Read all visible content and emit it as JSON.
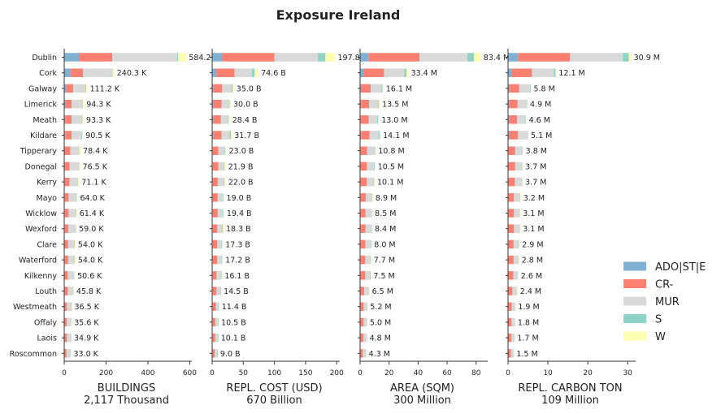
{
  "chart_data": {
    "type": "bar",
    "orientation": "horizontal",
    "stacked": true,
    "title": "Exposure Ireland",
    "legend_position": "right",
    "grid": false,
    "categories": [
      "Dublin",
      "Cork",
      "Galway",
      "Limerick",
      "Meath",
      "Kildare",
      "Tipperary",
      "Donegal",
      "Kerry",
      "Mayo",
      "Wicklow",
      "Wexford",
      "Clare",
      "Waterford",
      "Kilkenny",
      "Louth",
      "Westmeath",
      "Offaly",
      "Laois",
      "Roscommon"
    ],
    "series_colors": {
      "ADO|ST|E": "#80b1d3",
      "CR-": "#fb8072",
      "MUR": "#d9d9d9",
      "S": "#8dd3c7",
      "W": "#ffffb3"
    },
    "legend": [
      "ADO|ST|E",
      "CR-",
      "MUR",
      "S",
      "W"
    ],
    "panels": [
      {
        "xlabel": "BUILDINGS",
        "xlabel_total": "2,117 Thousand",
        "xlim": [
          0,
          610
        ],
        "xticks": [
          0,
          200,
          400,
          600
        ],
        "labels": [
          "584.2 K",
          "240.3 K",
          "111.2 K",
          "94.3 K",
          "93.3 K",
          "90.5 K",
          "78.4 K",
          "76.5 K",
          "71.1 K",
          "64.0 K",
          "61.4 K",
          "59.0 K",
          "54.0 K",
          "54.0 K",
          "50.6 K",
          "45.8 K",
          "36.5 K",
          "35.6 K",
          "34.9 K",
          "33.0 K"
        ],
        "series": [
          {
            "name": "ADO|ST|E",
            "values": [
              70,
              30,
              8,
              6,
              5,
              5,
              4,
              4,
              3,
              3,
              3,
              3,
              2,
              3,
              2,
              2,
              2,
              2,
              2,
              1
            ]
          },
          {
            "name": "CR-",
            "values": [
              160,
              60,
              35,
              30,
              30,
              30,
              25,
              22,
              22,
              18,
              18,
              17,
              17,
              16,
              15,
              15,
              11,
              11,
              11,
              10
            ]
          },
          {
            "name": "MUR",
            "values": [
              310,
              140,
              60,
              50,
              50,
              48,
              42,
              44,
              40,
              38,
              35,
              34,
              30,
              30,
              29,
              25,
              20,
              20,
              19,
              19
            ]
          },
          {
            "name": "S",
            "values": [
              4,
              2,
              2,
              3,
              3,
              3,
              2,
              2,
              2,
              2,
              2,
              2,
              2,
              2,
              2,
              2,
              2,
              1,
              2,
              2
            ]
          },
          {
            "name": "W",
            "values": [
              40,
              8,
              6,
              5,
              5,
              4,
              5,
              4,
              4,
              3,
              3,
              3,
              3,
              3,
              3,
              2,
              2,
              2,
              1,
              1
            ]
          }
        ]
      },
      {
        "xlabel": "REPL. COST (USD)",
        "xlabel_total": "670 Billion",
        "xlim": [
          0,
          205
        ],
        "xticks": [
          0,
          50,
          100,
          150,
          200
        ],
        "labels": [
          "197.8 B",
          "74.6 B",
          "35.0 B",
          "30.0 B",
          "28.4 B",
          "31.7 B",
          "23.0 B",
          "21.9 B",
          "22.0 B",
          "19.0 B",
          "19.4 B",
          "18.3 B",
          "17.3 B",
          "17.2 B",
          "16.1 B",
          "14.5 B",
          "11.4 B",
          "10.5 B",
          "10.1 B",
          "9.0 B"
        ],
        "series": [
          {
            "name": "ADO|ST|E",
            "values": [
              17,
              7,
              2,
              2,
              2,
              2,
              1,
              1,
              1,
              1,
              1,
              1,
              1,
              1,
              1,
              1,
              1,
              1,
              1,
              1
            ]
          },
          {
            "name": "CR-",
            "values": [
              83,
              29,
              14,
              13,
              12,
              13,
              9,
              9,
              8,
              8,
              8,
              7,
              7,
              7,
              6,
              6,
              5,
              4,
              4,
              3
            ]
          },
          {
            "name": "MUR",
            "values": [
              70,
              28,
              15,
              12,
              11,
              13,
              10,
              9,
              10,
              8,
              8,
              8,
              7,
              7,
              7,
              6,
              4,
              4,
              4,
              4
            ]
          },
          {
            "name": "S",
            "values": [
              12,
              4,
              2,
              1,
              1,
              2,
              1,
              1,
              1,
              1,
              1,
              1,
              1,
              1,
              1,
              1,
              1,
              1,
              1,
              1
            ]
          },
          {
            "name": "W",
            "values": [
              15.8,
              6.6,
              2,
              2,
              2.4,
              1.7,
              2,
              1.9,
              2,
              1,
              1.4,
              1.3,
              1.3,
              1.2,
              1.1,
              0.5,
              0.4,
              0.5,
              0.1,
              0
            ]
          }
        ]
      },
      {
        "xlabel": "AREA (SQM)",
        "xlabel_total": "300 Million",
        "xlim": [
          0,
          88
        ],
        "xticks": [
          0,
          20,
          40,
          60,
          80
        ],
        "labels": [
          "83.4 M",
          "33.4 M",
          "16.1 M",
          "13.5 M",
          "13.0 M",
          "14.1 M",
          "10.8 M",
          "10.5 M",
          "10.1 M",
          "8.9 M",
          "8.5 M",
          "8.4 M",
          "8.0 M",
          "7.7 M",
          "7.5 M",
          "6.5 M",
          "5.2 M",
          "5.0 M",
          "4.8 M",
          "4.3 M"
        ],
        "series": [
          {
            "name": "ADO|ST|E",
            "values": [
              6,
              2.5,
              0.8,
              0.7,
              0.6,
              0.7,
              0.5,
              0.5,
              0.5,
              0.4,
              0.4,
              0.4,
              0.4,
              0.4,
              0.4,
              0.3,
              0.3,
              0.3,
              0.3,
              0.2
            ]
          },
          {
            "name": "CR-",
            "values": [
              35,
              14,
              6.5,
              5.5,
              5.3,
              5.8,
              4.3,
              4.2,
              4,
              3.5,
              3.4,
              3.3,
              3.2,
              3.1,
              3,
              2.6,
              2.1,
              2,
              1.9,
              1.7
            ]
          },
          {
            "name": "MUR",
            "values": [
              33,
              14,
              7.5,
              6.2,
              6,
              6.5,
              5.2,
              5,
              4.8,
              4.3,
              4.1,
              4.1,
              3.9,
              3.7,
              3.6,
              3.2,
              2.5,
              2.4,
              2.3,
              2.1
            ]
          },
          {
            "name": "S",
            "values": [
              4.5,
              1.5,
              0.7,
              0.6,
              0.6,
              0.7,
              0.4,
              0.4,
              0.4,
              0.3,
              0.3,
              0.3,
              0.3,
              0.3,
              0.3,
              0.2,
              0.2,
              0.2,
              0.2,
              0.2
            ]
          },
          {
            "name": "W",
            "values": [
              4.9,
              1.4,
              0.6,
              0.5,
              0.5,
              0.4,
              0.4,
              0.4,
              0.4,
              0.4,
              0.3,
              0.3,
              0.2,
              0.2,
              0.2,
              0.2,
              0.1,
              0.1,
              0.1,
              0.1
            ]
          }
        ]
      },
      {
        "xlabel": "REPL. CARBON TON",
        "xlabel_total": "109 Million",
        "xlim": [
          0,
          32
        ],
        "xticks": [
          0,
          10,
          20,
          30
        ],
        "labels": [
          "30.9 M",
          "12.1 M",
          "5.8 M",
          "4.9 M",
          "4.6 M",
          "5.1 M",
          "3.8 M",
          "3.7 M",
          "3.7 M",
          "3.2 M",
          "3.1 M",
          "3.1 M",
          "2.9 M",
          "2.8 M",
          "2.6 M",
          "2.4 M",
          "1.9 M",
          "1.8 M",
          "1.7 M",
          "1.5 M"
        ],
        "series": [
          {
            "name": "ADO|ST|E",
            "values": [
              2.5,
              1,
              0.3,
              0.3,
              0.3,
              0.3,
              0.2,
              0.2,
              0.2,
              0.2,
              0.2,
              0.2,
              0.2,
              0.2,
              0.2,
              0.1,
              0.1,
              0.1,
              0.1,
              0.1
            ]
          },
          {
            "name": "CR-",
            "values": [
              13,
              5,
              2.5,
              2.1,
              2,
              2.2,
              1.6,
              1.6,
              1.5,
              1.3,
              1.3,
              1.3,
              1.2,
              1.2,
              1.1,
              1,
              0.8,
              0.7,
              0.7,
              0.6
            ]
          },
          {
            "name": "MUR",
            "values": [
              13.3,
              5.5,
              2.8,
              2.3,
              2.1,
              2.4,
              1.8,
              1.7,
              1.8,
              1.5,
              1.4,
              1.4,
              1.3,
              1.2,
              1.1,
              1.1,
              0.9,
              0.9,
              0.8,
              0.7
            ]
          },
          {
            "name": "S",
            "values": [
              1.5,
              0.4,
              0.1,
              0.1,
              0.1,
              0.1,
              0.1,
              0.1,
              0.1,
              0.1,
              0.1,
              0.1,
              0.1,
              0.1,
              0.1,
              0.1,
              0.05,
              0.05,
              0.05,
              0.05
            ]
          },
          {
            "name": "W",
            "values": [
              0.6,
              0.2,
              0.1,
              0.1,
              0.1,
              0.1,
              0.1,
              0.1,
              0.1,
              0.1,
              0.1,
              0.1,
              0.1,
              0.1,
              0.1,
              0.1,
              0.05,
              0.05,
              0.05,
              0.05
            ]
          }
        ]
      }
    ]
  }
}
